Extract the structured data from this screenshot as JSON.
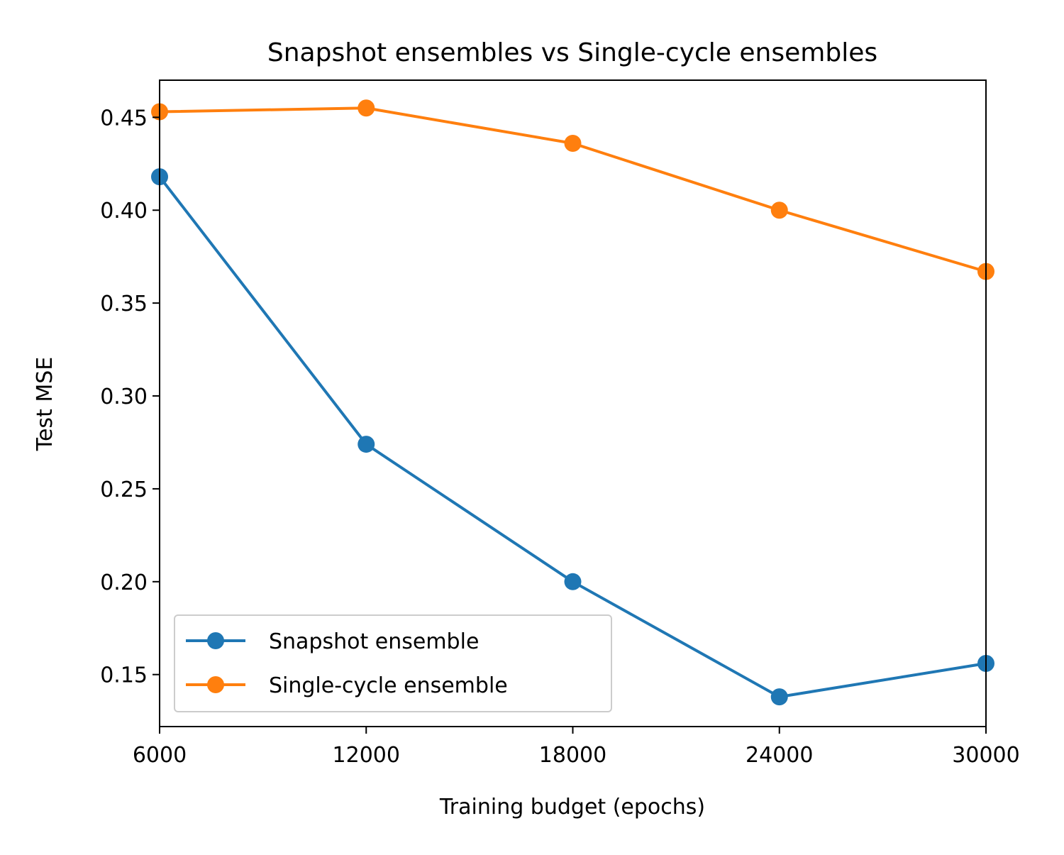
{
  "chart_data": {
    "type": "line",
    "title": "Snapshot ensembles vs Single-cycle ensembles",
    "xlabel": "Training budget (epochs)",
    "ylabel": "Test MSE",
    "x": [
      6000,
      12000,
      18000,
      24000,
      30000
    ],
    "xlim": [
      6000,
      30000
    ],
    "ylim": [
      0.122,
      0.47
    ],
    "x_ticks": [
      "6000",
      "12000",
      "18000",
      "24000",
      "30000"
    ],
    "y_ticks": [
      "0.15",
      "0.20",
      "0.25",
      "0.30",
      "0.35",
      "0.40",
      "0.45"
    ],
    "grid": false,
    "legend_position": "lower-left",
    "series": [
      {
        "name": "Snapshot ensemble",
        "color": "#1f77b4",
        "marker": "circle",
        "values": [
          0.418,
          0.274,
          0.2,
          0.138,
          0.156
        ]
      },
      {
        "name": "Single-cycle ensemble",
        "color": "#ff7f0e",
        "marker": "circle",
        "values": [
          0.453,
          0.455,
          0.436,
          0.4,
          0.367
        ]
      }
    ]
  }
}
